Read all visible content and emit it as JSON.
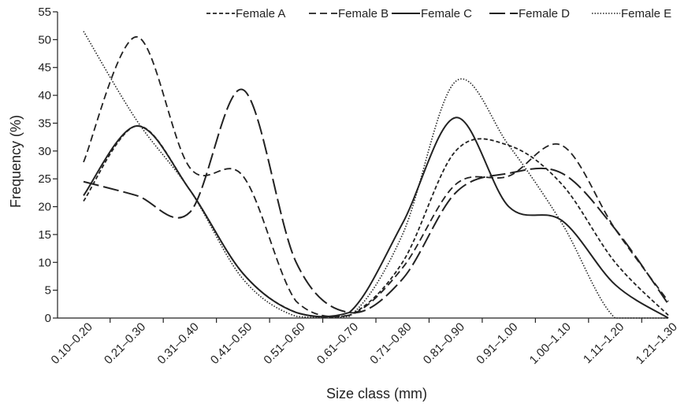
{
  "chart_data": {
    "type": "line",
    "title": "",
    "xlabel": "Size class (mm)",
    "ylabel": "Frequency (%)",
    "ylim": [
      0,
      55
    ],
    "yticks": [
      0,
      5,
      10,
      15,
      20,
      25,
      30,
      35,
      40,
      45,
      50,
      55
    ],
    "grid": false,
    "legend_position": "top",
    "smooth": true,
    "categories": [
      "0.10–0.20",
      "0.21–0.30",
      "0.31–0.40",
      "0.41–0.50",
      "0.51–0.60",
      "0.61–0.70",
      "0.71–0.80",
      "0.81–0.90",
      "0.91–1.00",
      "1.00–1.10",
      "1.11–1.20",
      "1.21–1.30"
    ],
    "series": [
      {
        "name": "Female A",
        "values": [
          21,
          34.5,
          23,
          8,
          1,
          0.5,
          10,
          30,
          31,
          24,
          10,
          0.5
        ]
      },
      {
        "name": "Female B",
        "values": [
          28,
          50.5,
          27,
          25.5,
          3,
          0.5,
          9,
          24,
          25.5,
          31,
          16,
          3
        ]
      },
      {
        "name": "Female C",
        "values": [
          22,
          34.5,
          23,
          8,
          1,
          1,
          17,
          36,
          20,
          17.5,
          6,
          0
        ]
      },
      {
        "name": "Female D",
        "values": [
          24.5,
          22,
          19,
          41,
          10,
          1,
          7,
          22.5,
          26,
          26,
          16,
          2.5
        ]
      },
      {
        "name": "Female E",
        "values": [
          51.5,
          35.5,
          23,
          7,
          0.3,
          0.3,
          15,
          42.5,
          31,
          17,
          0,
          0
        ]
      }
    ]
  }
}
